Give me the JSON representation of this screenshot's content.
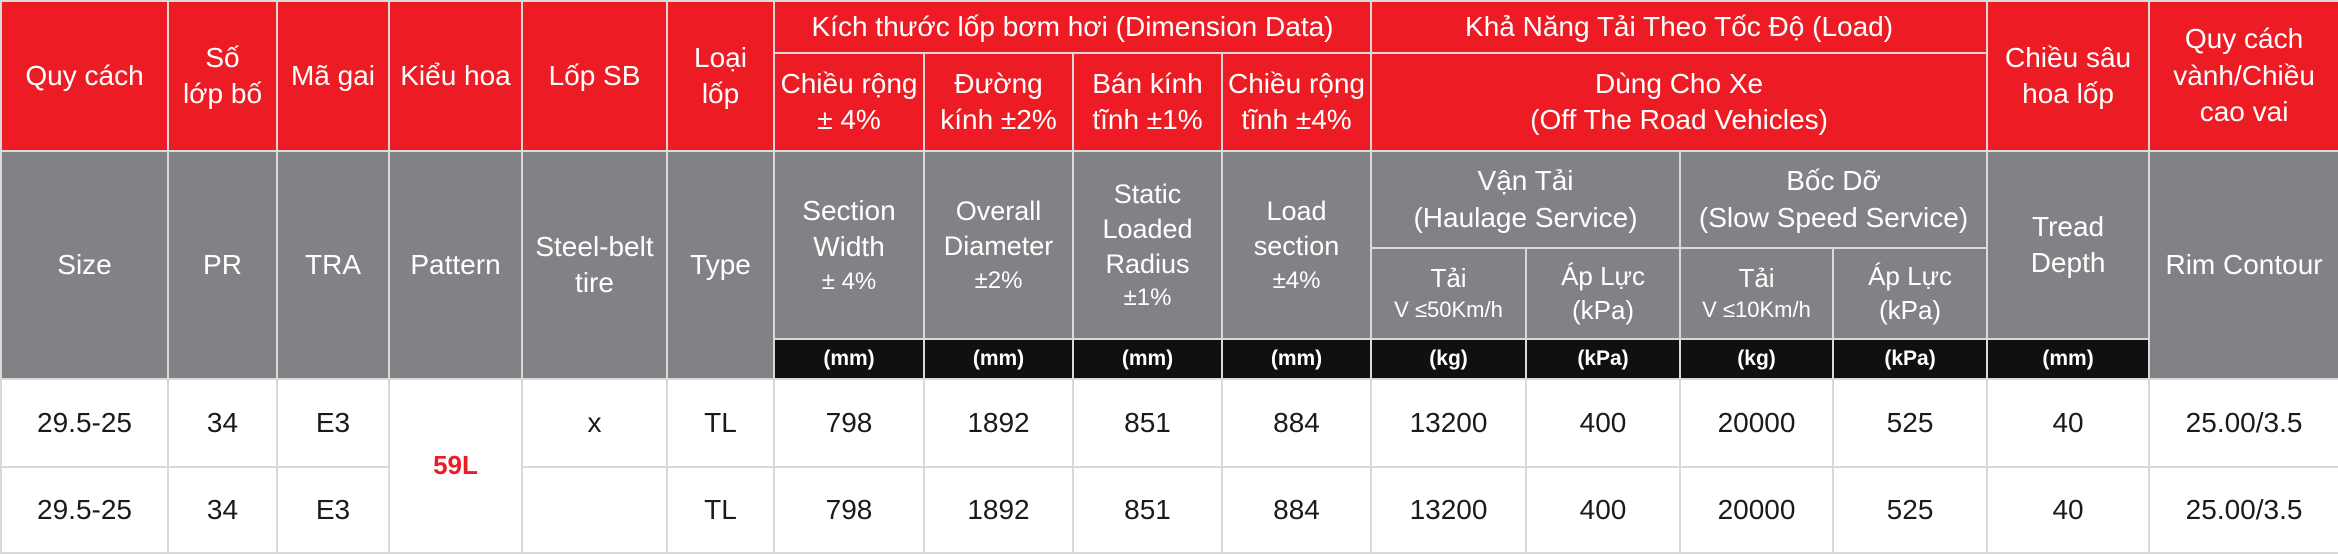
{
  "header_vi": {
    "size": "Quy cách",
    "pr_1": "Số",
    "pr_2": "lớp bố",
    "tra": "Mã gai",
    "pattern": "Kiểu hoa",
    "steel": "Lốp SB",
    "type_1": "Loại",
    "type_2": "lốp",
    "dimension_group": "Kích thước lốp bơm hơi (Dimension Data)",
    "load_group": "Khả Năng Tải Theo Tốc Độ (Load)",
    "section_width_1": "Chiều rộng",
    "section_width_2": "± 4%",
    "overall_diameter_1": "Đường",
    "overall_diameter_2": "kính ±2%",
    "static_radius_1": "Bán kính",
    "static_radius_2": "tĩnh ±1%",
    "load_section_1": "Chiều rộng",
    "load_section_2": "tĩnh ±4%",
    "vehicle_1": "Dùng Cho Xe",
    "vehicle_2": "(Off The Road Vehicles)",
    "tread_depth_1": "Chiều sâu",
    "tread_depth_2": "hoa lốp",
    "rim_1": "Quy cách",
    "rim_2": "vành/Chiều",
    "rim_3": "cao vai"
  },
  "header_en": {
    "size": "Size",
    "pr": "PR",
    "tra": "TRA",
    "pattern": "Pattern",
    "steel_1": "Steel-belt",
    "steel_2": "tire",
    "type": "Type",
    "section_width_1": "Section",
    "section_width_2": "Width",
    "section_width_3": "± 4%",
    "overall_diameter_1": "Overall",
    "overall_diameter_2": "Diameter",
    "overall_diameter_3": "±2%",
    "static_radius_1": "Static",
    "static_radius_2": "Loaded",
    "static_radius_3": "Radius",
    "static_radius_4": "±1%",
    "load_section_1": "Load",
    "load_section_2": "section",
    "load_section_3": "±4%",
    "haulage_1": "Vận Tải",
    "haulage_2": "(Haulage Service)",
    "slow_1": "Bốc Dỡ",
    "slow_2": "(Slow Speed Service)",
    "tread_depth_1": "Tread",
    "tread_depth_2": "Depth",
    "rim": "Rim Contour",
    "haul_load_1": "Tải",
    "haul_load_2": "V ≤50Km/h",
    "haul_pressure_1": "Áp Lực",
    "haul_pressure_2": "(kPa)",
    "slow_load_1": "Tải",
    "slow_load_2": "V ≤10Km/h",
    "slow_pressure_1": "Áp Lực",
    "slow_pressure_2": "(kPa)"
  },
  "units": {
    "section_width": "(mm)",
    "overall_diameter": "(mm)",
    "static_radius": "(mm)",
    "load_section": "(mm)",
    "haul_load": "(kg)",
    "haul_pressure": "(kPa)",
    "slow_load": "(kg)",
    "slow_pressure": "(kPa)",
    "tread_depth": "(mm)"
  },
  "pattern_label": "59L",
  "rows": [
    {
      "size": "29.5-25",
      "pr": "34",
      "tra": "E3",
      "steel": "x",
      "type": "TL",
      "section_width": "798",
      "overall_diameter": "1892",
      "static_radius": "851",
      "load_section": "884",
      "haul_load": "13200",
      "haul_pressure": "400",
      "slow_load": "20000",
      "slow_pressure": "525",
      "tread_depth": "40",
      "rim": "25.00/3.5"
    },
    {
      "size": "29.5-25",
      "pr": "34",
      "tra": "E3",
      "steel": "",
      "type": "TL",
      "section_width": "798",
      "overall_diameter": "1892",
      "static_radius": "851",
      "load_section": "884",
      "haul_load": "13200",
      "haul_pressure": "400",
      "slow_load": "20000",
      "slow_pressure": "525",
      "tread_depth": "40",
      "rim": "25.00/3.5"
    }
  ]
}
